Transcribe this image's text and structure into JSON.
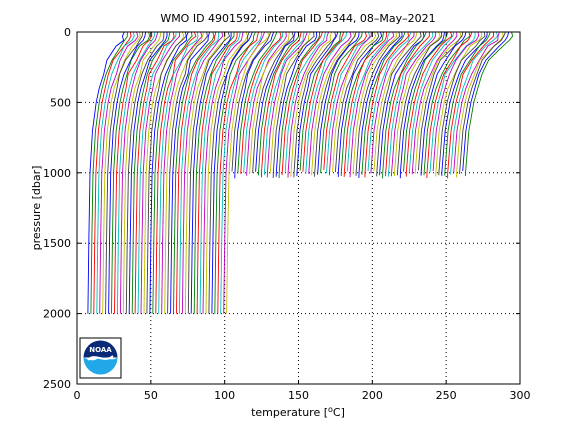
{
  "chart_data": {
    "type": "line",
    "title": "WMO ID 4901592, internal ID 5344, 08–May–2021",
    "xlabel": "temperature [",
    "xlabel_unit": "C]",
    "xlabel_sup": "o",
    "ylabel": "pressure [dbar]",
    "xlim": [
      0,
      300
    ],
    "ylim": [
      0,
      2500
    ],
    "y_reversed": true,
    "x_ticks": [
      "0",
      "50",
      "100",
      "150",
      "200",
      "250",
      "300"
    ],
    "y_ticks": [
      "0",
      "500",
      "1000",
      "1500",
      "2000",
      "2500"
    ],
    "grid": true,
    "grid_style": "dotted",
    "profile_count": 128,
    "profile_spacing_deg": 2.0,
    "profile_shape": [
      {
        "p": 0,
        "dt": 24.0
      },
      {
        "p": 30,
        "dt": 24.0
      },
      {
        "p": 60,
        "dt": 22.5
      },
      {
        "p": 100,
        "dt": 19.0
      },
      {
        "p": 200,
        "dt": 13.0
      },
      {
        "p": 300,
        "dt": 9.5
      },
      {
        "p": 400,
        "dt": 7.0
      },
      {
        "p": 500,
        "dt": 5.0
      },
      {
        "p": 700,
        "dt": 2.5
      },
      {
        "p": 1000,
        "dt": 0.8
      },
      {
        "p": 1500,
        "dt": 0.0
      },
      {
        "p": 2000,
        "dt": -0.6
      }
    ],
    "deep_profiles_until_index": 48,
    "shallow_max_pressure": 1000,
    "deep_max_pressure": 2000,
    "series_colors": [
      "#0000ff",
      "#008000",
      "#ff0000",
      "#00bfbf",
      "#bf00bf",
      "#bfbf00",
      "#404040"
    ]
  },
  "logo": {
    "name": "noaa-logo",
    "text": "NOAA"
  }
}
